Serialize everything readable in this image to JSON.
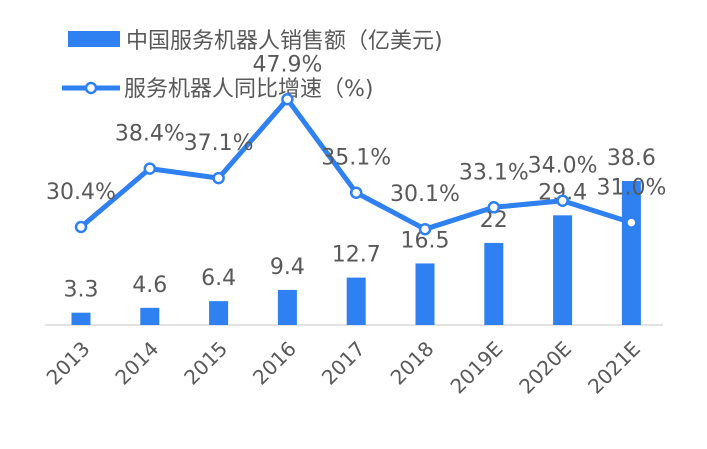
{
  "chart_data": {
    "type": "bar",
    "categories": [
      "2013",
      "2014",
      "2015",
      "2016",
      "2017",
      "2018",
      "2019E",
      "2020E",
      "2021E"
    ],
    "series": [
      {
        "name": "中国服务机器人销售额（亿美元)",
        "type": "bar",
        "axis": "left",
        "values": [
          3.3,
          4.6,
          6.4,
          9.4,
          12.7,
          16.5,
          22,
          29.4,
          38.6
        ],
        "labels": [
          "3.3",
          "4.6",
          "6.4",
          "9.4",
          "12.7",
          "16.5",
          "22",
          "29.4",
          "38.6"
        ]
      },
      {
        "name": "服务机器人同比增速（%)",
        "type": "line",
        "axis": "right",
        "values": [
          30.4,
          38.4,
          37.1,
          47.9,
          35.1,
          30.1,
          33.1,
          34.0,
          31.0
        ],
        "labels": [
          "30.4%",
          "38.4%",
          "37.1%",
          "47.9%",
          "35.1%",
          "30.1%",
          "33.1%",
          "34.0%",
          "31.0%"
        ]
      }
    ],
    "colors": {
      "series": "#2f80f0",
      "text": "#595959",
      "axis": "#d9d9d9"
    },
    "legend_position": "top-left",
    "grid": false
  }
}
